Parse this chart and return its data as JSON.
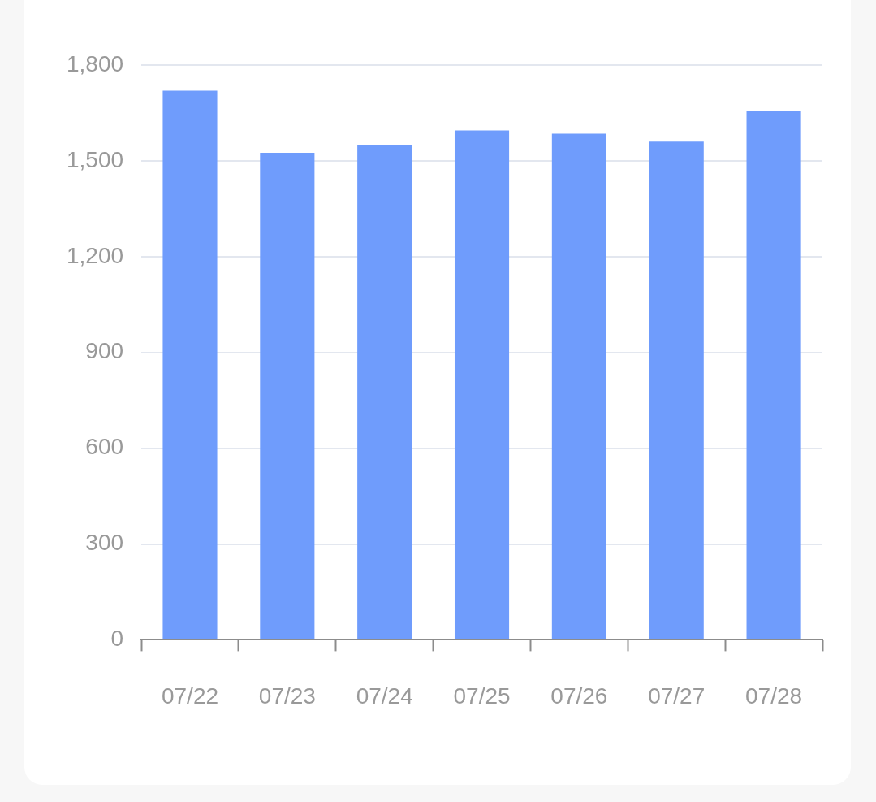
{
  "chart_data": {
    "type": "bar",
    "categories": [
      "07/22",
      "07/23",
      "07/24",
      "07/25",
      "07/26",
      "07/27",
      "07/28"
    ],
    "values": [
      1720,
      1525,
      1550,
      1595,
      1585,
      1560,
      1655
    ],
    "color": "#6f9cfc",
    "ylim": [
      0,
      1800
    ],
    "yticks": [
      0,
      300,
      600,
      900,
      {
        "value": 1200,
        "label": "1,200"
      },
      {
        "value": 1500,
        "label": "1,500"
      },
      {
        "value": 1800,
        "label": "1,800"
      }
    ],
    "grid": "y"
  }
}
